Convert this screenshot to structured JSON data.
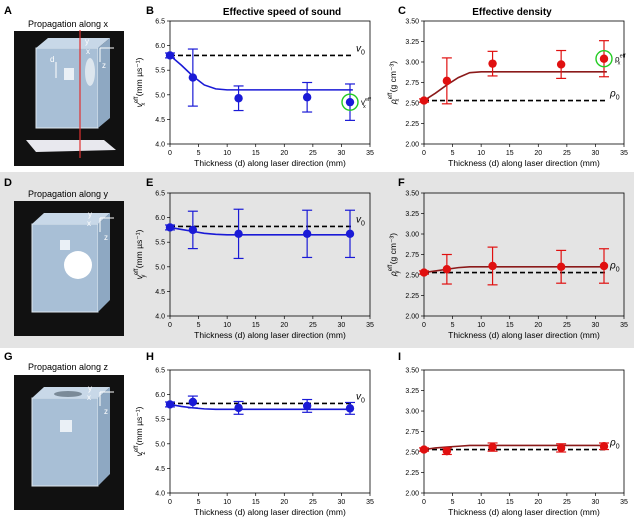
{
  "figure": {
    "panel_letters": [
      "A",
      "B",
      "C",
      "D",
      "E",
      "F",
      "G",
      "H",
      "I"
    ],
    "column_titles": {
      "speed": "Effective speed of sound",
      "density": "Effective density"
    },
    "propagation_labels": [
      "Propagation along x",
      "Propagation along y",
      "Propagation along z"
    ],
    "cube_labels": {
      "x": "x",
      "y": "y",
      "z": "z",
      "d": "d"
    },
    "colors": {
      "speed": "#1a1ad6",
      "density": "#e01010",
      "density_line": "#8b1a1a",
      "highlight": "#22cc22",
      "gray_band": "#e4e4e4"
    }
  },
  "chart_data": [
    {
      "id": "B",
      "type": "scatter",
      "title": "",
      "xlabel": "Thickness (d) along laser direction (mm)",
      "ylabel": "v_x^eff (mm µs⁻¹)",
      "ylabel_main": "v",
      "ylabel_sub": "x",
      "ylabel_sup": "eff",
      "ylabel_unit": " (mm µs⁻¹)",
      "xlim": [
        0,
        35
      ],
      "ylim": [
        4.0,
        6.5
      ],
      "xticks": [
        0,
        5,
        10,
        15,
        20,
        25,
        30,
        35
      ],
      "yticks": [
        4.0,
        4.5,
        5.0,
        5.5,
        6.0,
        6.5
      ],
      "ref_line": 5.8,
      "ref_label": "v",
      "ref_sub": "0",
      "series": [
        {
          "name": "speed",
          "x": [
            0,
            4,
            12,
            24,
            31.5
          ],
          "y": [
            5.8,
            5.35,
            4.93,
            4.95,
            4.85
          ],
          "err": [
            0.05,
            0.58,
            0.25,
            0.3,
            0.37
          ]
        }
      ],
      "fit": {
        "x": [
          0,
          2,
          4,
          6,
          8,
          10,
          15,
          20,
          25,
          30,
          32
        ],
        "y": [
          5.8,
          5.6,
          5.38,
          5.2,
          5.12,
          5.1,
          5.1,
          5.1,
          5.1,
          5.1,
          5.1
        ]
      },
      "highlight": {
        "x": 31.5,
        "y": 4.85,
        "label_main": "v",
        "label_sub": "x",
        "label_sup": "eff"
      }
    },
    {
      "id": "C",
      "type": "scatter",
      "title": "",
      "xlabel": "Thickness (d) along laser direction (mm)",
      "ylabel": "ρ_x^eff (g cm⁻³)",
      "ylabel_main": "ρ",
      "ylabel_sub": "x",
      "ylabel_sup": "eff",
      "ylabel_unit": " (g cm⁻³)",
      "xlim": [
        0,
        35
      ],
      "ylim": [
        2.0,
        3.5
      ],
      "xticks": [
        0,
        5,
        10,
        15,
        20,
        25,
        30,
        35
      ],
      "yticks": [
        2.0,
        2.25,
        2.5,
        2.75,
        3.0,
        3.25,
        3.5
      ],
      "ytick_labels": [
        "2.00",
        "2.25",
        "2.50",
        "2.75",
        "3.00",
        "3.25",
        "3.50"
      ],
      "ref_line": 2.53,
      "ref_label": "ρ",
      "ref_sub": "0",
      "series": [
        {
          "name": "density",
          "x": [
            0,
            4,
            12,
            24,
            31.5
          ],
          "y": [
            2.53,
            2.77,
            2.98,
            2.97,
            3.04
          ],
          "err": [
            0.02,
            0.28,
            0.15,
            0.17,
            0.22
          ]
        }
      ],
      "fit": {
        "x": [
          0,
          2,
          4,
          6,
          8,
          10,
          15,
          20,
          25,
          30,
          32
        ],
        "y": [
          2.53,
          2.62,
          2.72,
          2.81,
          2.87,
          2.88,
          2.88,
          2.88,
          2.88,
          2.88,
          2.88
        ]
      },
      "highlight": {
        "x": 31.5,
        "y": 3.04,
        "label_main": "ρ",
        "label_sub": "x",
        "label_sup": "eff"
      }
    },
    {
      "id": "E",
      "type": "scatter",
      "title": "",
      "xlabel": "Thickness (d) along laser direction (mm)",
      "ylabel": "v_y^eff (mm µs⁻¹)",
      "ylabel_main": "v",
      "ylabel_sub": "y",
      "ylabel_sup": "eff",
      "ylabel_unit": " (mm µs⁻¹)",
      "xlim": [
        0,
        35
      ],
      "ylim": [
        4.0,
        6.5
      ],
      "xticks": [
        0,
        5,
        10,
        15,
        20,
        25,
        30,
        35
      ],
      "yticks": [
        4.0,
        4.5,
        5.0,
        5.5,
        6.0,
        6.5
      ],
      "ref_line": 5.82,
      "ref_label": "v",
      "ref_sub": "0",
      "series": [
        {
          "name": "speed",
          "x": [
            0,
            4,
            12,
            24,
            31.5
          ],
          "y": [
            5.8,
            5.75,
            5.67,
            5.67,
            5.67
          ],
          "err": [
            0.05,
            0.38,
            0.5,
            0.48,
            0.48
          ]
        }
      ],
      "fit": {
        "x": [
          0,
          2,
          4,
          6,
          8,
          10,
          15,
          20,
          25,
          30,
          32
        ],
        "y": [
          5.8,
          5.76,
          5.72,
          5.68,
          5.66,
          5.65,
          5.65,
          5.65,
          5.65,
          5.65,
          5.65
        ]
      }
    },
    {
      "id": "F",
      "type": "scatter",
      "title": "",
      "xlabel": "Thickness (d) along laser direction (mm)",
      "ylabel": "ρ_y^eff (g cm⁻³)",
      "ylabel_main": "ρ",
      "ylabel_sub": "y",
      "ylabel_sup": "eff",
      "ylabel_unit": " (g cm⁻³)",
      "xlim": [
        0,
        35
      ],
      "ylim": [
        2.0,
        3.5
      ],
      "xticks": [
        0,
        5,
        10,
        15,
        20,
        25,
        30,
        35
      ],
      "yticks": [
        2.0,
        2.25,
        2.5,
        2.75,
        3.0,
        3.25,
        3.5
      ],
      "ytick_labels": [
        "2.00",
        "2.25",
        "2.50",
        "2.75",
        "3.00",
        "3.25",
        "3.50"
      ],
      "ref_line": 2.53,
      "ref_label": "ρ",
      "ref_sub": "0",
      "series": [
        {
          "name": "density",
          "x": [
            0,
            4,
            12,
            24,
            31.5
          ],
          "y": [
            2.53,
            2.57,
            2.61,
            2.6,
            2.61
          ],
          "err": [
            0.02,
            0.18,
            0.23,
            0.2,
            0.21
          ]
        }
      ],
      "fit": {
        "x": [
          0,
          2,
          4,
          6,
          8,
          10,
          15,
          20,
          25,
          30,
          32
        ],
        "y": [
          2.53,
          2.55,
          2.57,
          2.59,
          2.6,
          2.6,
          2.6,
          2.6,
          2.6,
          2.6,
          2.6
        ]
      }
    },
    {
      "id": "H",
      "type": "scatter",
      "title": "",
      "xlabel": "Thickness (d) along laser direction (mm)",
      "ylabel": "v_z^eff (mm µs⁻¹)",
      "ylabel_main": "v",
      "ylabel_sub": "z",
      "ylabel_sup": "eff",
      "ylabel_unit": " (mm µs⁻¹)",
      "xlim": [
        0,
        35
      ],
      "ylim": [
        4.0,
        6.5
      ],
      "xticks": [
        0,
        5,
        10,
        15,
        20,
        25,
        30,
        35
      ],
      "yticks": [
        4.0,
        4.5,
        5.0,
        5.5,
        6.0,
        6.5
      ],
      "ref_line": 5.82,
      "ref_label": "v",
      "ref_sub": "0",
      "series": [
        {
          "name": "speed",
          "x": [
            0,
            4,
            12,
            24,
            31.5
          ],
          "y": [
            5.8,
            5.85,
            5.73,
            5.77,
            5.72
          ],
          "err": [
            0.05,
            0.12,
            0.13,
            0.13,
            0.12
          ]
        }
      ],
      "fit": {
        "x": [
          0,
          2,
          4,
          6,
          8,
          10,
          15,
          20,
          25,
          30,
          32
        ],
        "y": [
          5.8,
          5.76,
          5.73,
          5.71,
          5.7,
          5.7,
          5.7,
          5.7,
          5.7,
          5.7,
          5.7
        ]
      }
    },
    {
      "id": "I",
      "type": "scatter",
      "title": "",
      "xlabel": "Thickness (d) along laser direction (mm)",
      "ylabel": "",
      "ylabel_main": "",
      "ylabel_sub": "",
      "ylabel_sup": "",
      "ylabel_unit": "",
      "xlim": [
        0,
        35
      ],
      "ylim": [
        2.0,
        3.5
      ],
      "xticks": [
        0,
        5,
        10,
        15,
        20,
        25,
        30,
        35
      ],
      "yticks": [
        2.0,
        2.25,
        2.5,
        2.75,
        3.0,
        3.25,
        3.5
      ],
      "ytick_labels": [
        "2.00",
        "2.25",
        "2.50",
        "2.75",
        "3.00",
        "3.25",
        "3.50"
      ],
      "ref_line": 2.53,
      "ref_label": "ρ",
      "ref_sub": "0",
      "series": [
        {
          "name": "density",
          "x": [
            0,
            4,
            12,
            24,
            31.5
          ],
          "y": [
            2.53,
            2.51,
            2.56,
            2.55,
            2.57
          ],
          "err": [
            0.02,
            0.04,
            0.05,
            0.05,
            0.04
          ]
        }
      ],
      "fit": {
        "x": [
          0,
          2,
          4,
          6,
          8,
          10,
          15,
          20,
          25,
          30,
          32
        ],
        "y": [
          2.53,
          2.55,
          2.56,
          2.57,
          2.58,
          2.58,
          2.58,
          2.58,
          2.58,
          2.58,
          2.58
        ]
      }
    }
  ]
}
